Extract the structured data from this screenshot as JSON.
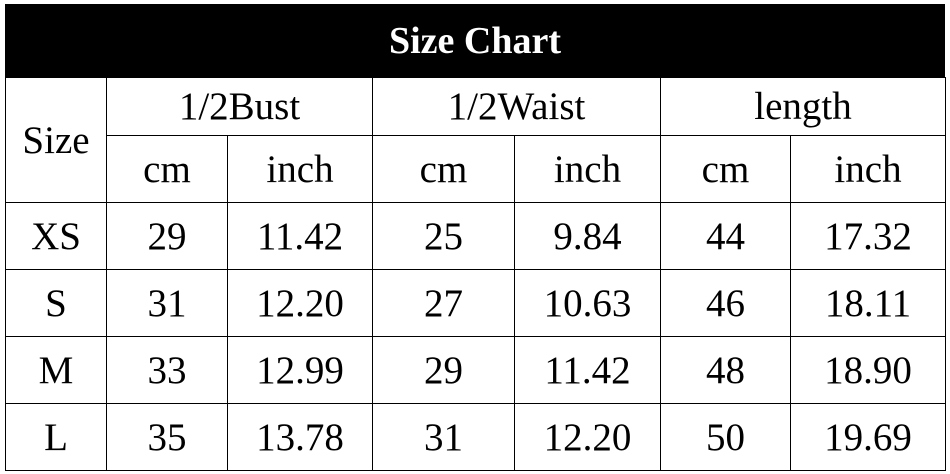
{
  "title": "Size Chart",
  "headers": {
    "size": "Size",
    "groups": [
      "1/2Bust",
      "1/2Waist",
      "length"
    ],
    "units": [
      "cm",
      "inch",
      "cm",
      "inch",
      "cm",
      "inch"
    ]
  },
  "rows": [
    {
      "size": "XS",
      "values": [
        "29",
        "11.42",
        "25",
        "9.84",
        "44",
        "17.32"
      ]
    },
    {
      "size": "S",
      "values": [
        "31",
        "12.20",
        "27",
        "10.63",
        "46",
        "18.11"
      ]
    },
    {
      "size": "M",
      "values": [
        "33",
        "12.99",
        "29",
        "11.42",
        "48",
        "18.90"
      ]
    },
    {
      "size": "L",
      "values": [
        "35",
        "13.78",
        "31",
        "12.20",
        "50",
        "19.69"
      ]
    }
  ]
}
